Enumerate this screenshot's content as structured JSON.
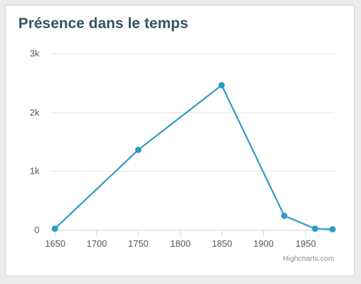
{
  "card": {
    "title": "Présence dans le temps"
  },
  "credits": "Highcharts.com",
  "chart_data": {
    "type": "line",
    "title": "Présence dans le temps",
    "xlabel": "",
    "ylabel": "",
    "x_ticks": [
      1650,
      1700,
      1750,
      1800,
      1850,
      1900,
      1950
    ],
    "y_ticks": [
      0,
      1000,
      2000,
      3000
    ],
    "y_tick_labels": [
      "0",
      "1k",
      "2k",
      "3k"
    ],
    "xlim": [
      1645,
      1985
    ],
    "ylim": [
      0,
      3000
    ],
    "grid": "horizontal",
    "legend": "none",
    "series": [
      {
        "color": "#2f9ac5",
        "points": [
          {
            "x": 1650,
            "y": 20
          },
          {
            "x": 1750,
            "y": 1360
          },
          {
            "x": 1850,
            "y": 2460
          },
          {
            "x": 1925,
            "y": 240
          },
          {
            "x": 1962,
            "y": 20
          },
          {
            "x": 1983,
            "y": 10
          }
        ]
      }
    ],
    "colors": {
      "grid": "#e0e4e8",
      "axis_line": "#ccd6eb",
      "tick_label": "#555555"
    }
  }
}
